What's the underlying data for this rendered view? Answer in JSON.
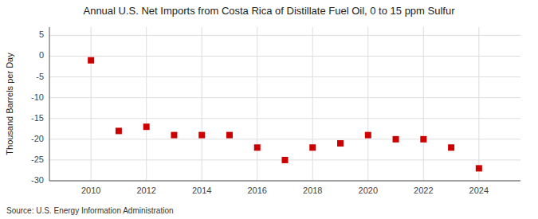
{
  "chart_data": {
    "type": "scatter",
    "title": "Annual U.S. Net Imports from Costa Rica of Distillate Fuel Oil, 0 to 15 ppm Sulfur",
    "ylabel": "Thousand Barrels per Day",
    "source": "Source: U.S. Energy Information Administration",
    "x": [
      2010,
      2011,
      2012,
      2013,
      2014,
      2015,
      2016,
      2017,
      2018,
      2019,
      2020,
      2021,
      2022,
      2023,
      2024
    ],
    "values": [
      -1.0,
      -18.0,
      -17.0,
      -19.0,
      -19.0,
      -19.0,
      -22.0,
      -25.0,
      -22.0,
      -21.0,
      -19.0,
      -20.0,
      -20.0,
      -22.0,
      -27.0
    ],
    "color": "#cc0000",
    "marker": "square",
    "xlim": [
      2008.5,
      2025.5
    ],
    "ylim": [
      -30,
      7
    ],
    "xticks": [
      2010,
      2012,
      2014,
      2016,
      2018,
      2020,
      2022,
      2024
    ],
    "yticks": [
      5,
      0,
      -5,
      -10,
      -15,
      -20,
      -25,
      -30
    ],
    "grid": true
  }
}
